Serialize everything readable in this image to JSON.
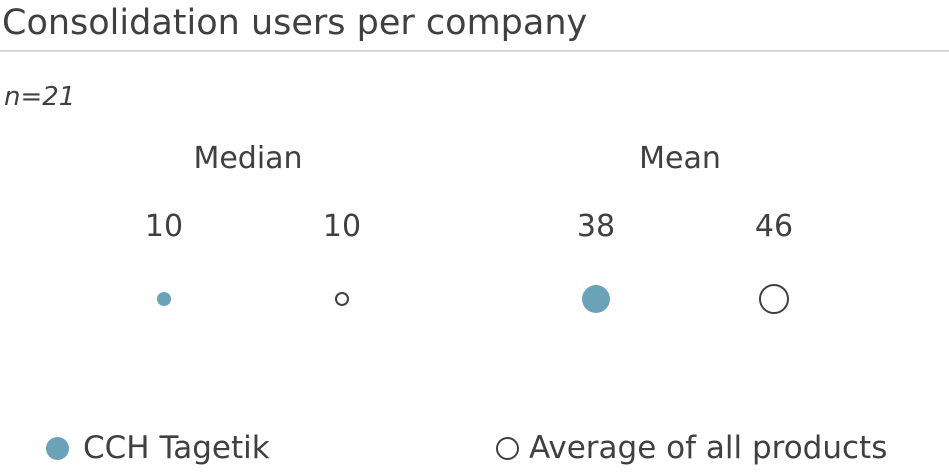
{
  "title": "Consolidation users per company",
  "sample_size": "n=21",
  "colors": {
    "series_primary": "#6aa3b8",
    "series_reference_stroke": "#404040",
    "series_reference_fill": "#ffffff",
    "text": "#404040",
    "rule": "#d9d9d9"
  },
  "chart_data": {
    "type": "scatter",
    "title": "Consolidation users per company",
    "subtitle": "n=21",
    "categories": [
      "Median",
      "Mean"
    ],
    "series": [
      {
        "name": "CCH Tagetik",
        "values": [
          10,
          38
        ],
        "marker": "filled-circle"
      },
      {
        "name": "Average of all products",
        "values": [
          10,
          46
        ],
        "marker": "hollow-circle"
      }
    ],
    "value_labels": [
      [
        "10",
        "38"
      ],
      [
        "10",
        "46"
      ]
    ],
    "marker_size_encodes_value": true,
    "legend": "bottom"
  }
}
